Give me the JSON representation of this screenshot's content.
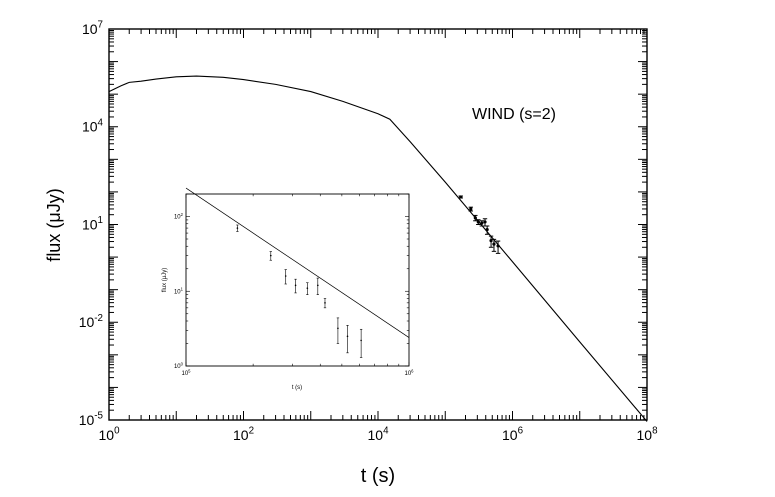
{
  "chart_data": [
    {
      "type": "line",
      "title": "",
      "annotation": "WIND (s=2)",
      "xlabel": "t (s)",
      "ylabel": "flux (μJy)",
      "xscale": "log",
      "yscale": "log",
      "xlim": [
        1,
        100000000
      ],
      "ylim": [
        1e-05,
        10000000
      ],
      "x_ticks": [
        {
          "value": 1,
          "base": "10",
          "exp": "0"
        },
        {
          "value": 100,
          "base": "10",
          "exp": "2"
        },
        {
          "value": 10000,
          "base": "10",
          "exp": "4"
        },
        {
          "value": 1000000,
          "base": "10",
          "exp": "6"
        },
        {
          "value": 100000000,
          "base": "10",
          "exp": "8"
        }
      ],
      "y_ticks": [
        {
          "value": 1e-05,
          "base": "10",
          "exp": "-5"
        },
        {
          "value": 0.01,
          "base": "10",
          "exp": "-2"
        },
        {
          "value": 10,
          "base": "10",
          "exp": "1"
        },
        {
          "value": 10000,
          "base": "10",
          "exp": "4"
        },
        {
          "value": 10000000,
          "base": "10",
          "exp": "7"
        }
      ],
      "grid": false,
      "legend": "none",
      "series": [
        {
          "kind": "model-curve",
          "x": [
            1,
            1.5,
            2,
            3,
            5,
            10,
            20,
            50,
            100,
            300,
            1000,
            3000,
            10000,
            15000,
            30000,
            100000,
            1000000,
            10000000,
            100000000
          ],
          "y": [
            120000,
            180000,
            230000,
            250000,
            290000,
            340000,
            360000,
            330000,
            280000,
            200000,
            120000,
            60000,
            25000,
            17000,
            3500,
            200,
            0.72,
            0.0025,
            9e-06
          ]
        },
        {
          "kind": "observations",
          "x": [
            170000,
            240000,
            280000,
            310000,
            350000,
            390000,
            420000,
            480000,
            530000,
            610000
          ],
          "y": [
            70,
            30,
            16,
            12,
            11,
            12,
            7,
            3.2,
            2.5,
            2.2
          ],
          "yerr": [
            5,
            4,
            3,
            2,
            2,
            3,
            2,
            1.2,
            1.0,
            0.9
          ]
        }
      ]
    },
    {
      "type": "line",
      "title": "",
      "xlabel": "t (s)",
      "ylabel": "flux (μJy)",
      "xscale": "log",
      "yscale": "log",
      "xlim": [
        100000,
        1000000
      ],
      "ylim": [
        1,
        200
      ],
      "x_ticks": [
        {
          "value": 100000,
          "base": "10",
          "exp": "5"
        },
        {
          "value": 1000000,
          "base": "10",
          "exp": "6"
        }
      ],
      "y_ticks": [
        {
          "value": 1,
          "base": "10",
          "exp": "0"
        },
        {
          "value": 10,
          "base": "10",
          "exp": "1"
        },
        {
          "value": 100,
          "base": "10",
          "exp": "2"
        }
      ],
      "grid": false,
      "legend": "none",
      "series": [
        {
          "kind": "model-curve",
          "x": [
            100000,
            1000000
          ],
          "y": [
            240,
            2.4
          ]
        },
        {
          "kind": "observations",
          "x": [
            170000,
            240000,
            280000,
            310000,
            350000,
            390000,
            420000,
            480000,
            530000,
            610000
          ],
          "y": [
            70,
            30,
            16,
            12,
            11,
            12,
            7,
            3.2,
            2.5,
            2.2
          ],
          "yerr": [
            7,
            4,
            3.5,
            2.5,
            2,
            3,
            1,
            1.2,
            1.0,
            0.9
          ]
        }
      ]
    }
  ]
}
